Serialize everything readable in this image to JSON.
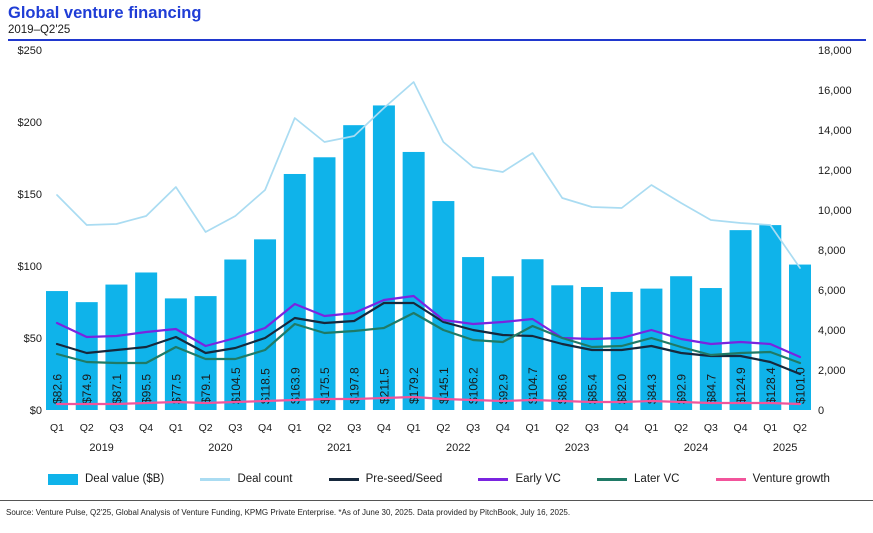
{
  "header": {
    "title": "Global venture financing",
    "subtitle": "2019–Q2'25"
  },
  "source_note": "Source: Venture Pulse, Q2'25, Global Analysis of Venture Funding, KPMG Private Enterprise. *As of June 30, 2025. Data provided by PitchBook, July 16, 2025.",
  "colors": {
    "title_blue": "#1f3dd6",
    "rule_blue": "#2038ce",
    "bar_cyan": "#0fb3ea",
    "deal_count_light_blue": "#aadcf2",
    "preseed_navy": "#16283c",
    "early_vc_purple": "#7a24e0",
    "later_vc_teal": "#1f7a66",
    "venture_growth_pink": "#f2549b",
    "axis_text": "#1a1a1a"
  },
  "legend": {
    "items": [
      {
        "label": "Deal value ($B)",
        "swatch": "bar",
        "color": "#0fb3ea"
      },
      {
        "label": "Deal count",
        "swatch": "line",
        "color": "#aadcf2"
      },
      {
        "label": "Pre-seed/Seed",
        "swatch": "line",
        "color": "#16283c"
      },
      {
        "label": "Early VC",
        "swatch": "line",
        "color": "#7a24e0"
      },
      {
        "label": "Later VC",
        "swatch": "line",
        "color": "#1f7a66"
      },
      {
        "label": "Venture growth",
        "swatch": "line",
        "color": "#f2549b"
      }
    ]
  },
  "chart_data": {
    "type": "combo_bar_line",
    "title": "Global venture financing",
    "subtitle": "2019–Q2'25",
    "grid": false,
    "legend_position": "bottom",
    "categories": [
      "Q1'19",
      "Q2'19",
      "Q3'19",
      "Q4'19",
      "Q1'20",
      "Q2'20",
      "Q3'20",
      "Q4'20",
      "Q1'21",
      "Q2'21",
      "Q3'21",
      "Q4'21",
      "Q1'22",
      "Q2'22",
      "Q3'22",
      "Q4'22",
      "Q1'23",
      "Q2'23",
      "Q3'23",
      "Q4'23",
      "Q1'24",
      "Q2'24",
      "Q3'24",
      "Q4'24",
      "Q1'25",
      "Q2'25"
    ],
    "x_axis": {
      "quarter_labels": [
        "Q1",
        "Q2",
        "Q3",
        "Q4",
        "Q1",
        "Q2",
        "Q3",
        "Q4",
        "Q1",
        "Q2",
        "Q3",
        "Q4",
        "Q1",
        "Q2",
        "Q3",
        "Q4",
        "Q1",
        "Q2",
        "Q3",
        "Q4",
        "Q1",
        "Q2",
        "Q3",
        "Q4",
        "Q1",
        "Q2"
      ],
      "year_labels": [
        "2019",
        "2020",
        "2021",
        "2022",
        "2023",
        "2024",
        "2025"
      ]
    },
    "left_axis": {
      "min": 0,
      "max": 250,
      "step": 50,
      "tick_labels": [
        "$0",
        "$50",
        "$100",
        "$150",
        "$200",
        "$250"
      ]
    },
    "right_axis": {
      "min": 0,
      "max": 18000,
      "step": 2000,
      "tick_labels": [
        "0",
        "2,000",
        "4,000",
        "6,000",
        "8,000",
        "10,000",
        "12,000",
        "14,000",
        "16,000",
        "18,000"
      ]
    },
    "bar_series": {
      "name": "Deal value ($B)",
      "axis": "left",
      "color": "#0fb3ea",
      "values": [
        82.6,
        74.9,
        87.1,
        95.5,
        77.5,
        79.1,
        104.5,
        118.5,
        163.9,
        175.5,
        197.8,
        211.5,
        179.2,
        145.1,
        106.2,
        92.9,
        104.7,
        86.6,
        85.4,
        82.0,
        84.3,
        92.9,
        84.7,
        124.9,
        128.4,
        101.0
      ],
      "value_labels": [
        "$82.6",
        "$74.9",
        "$87.1",
        "$95.5",
        "$77.5",
        "$79.1",
        "$104.5",
        "$118.5",
        "$163.9",
        "$175.5",
        "$197.8",
        "$211.5",
        "$179.2",
        "$145.1",
        "$106.2",
        "$92.9",
        "$104.7",
        "$86.6",
        "$85.4",
        "$82.0",
        "$84.3",
        "$92.9",
        "$84.7",
        "$124.9",
        "$128.4",
        "$101.0"
      ]
    },
    "line_series": [
      {
        "name": "Deal count",
        "axis": "right",
        "color": "#aadcf2",
        "width": 1.7,
        "values": [
          10750,
          9250,
          9300,
          9700,
          11150,
          8900,
          9700,
          11000,
          14600,
          13400,
          13700,
          15100,
          16400,
          13400,
          12150,
          11900,
          12850,
          10600,
          10150,
          10100,
          11250,
          10350,
          9500,
          9350,
          9250,
          7100
        ]
      },
      {
        "name": "Pre-seed/Seed",
        "axis": "right",
        "color": "#16283c",
        "width": 2.2,
        "values": [
          3300,
          2850,
          3000,
          3150,
          3650,
          2850,
          3100,
          3600,
          4600,
          4350,
          4450,
          5350,
          5350,
          4400,
          4000,
          3750,
          3700,
          3300,
          3000,
          3000,
          3200,
          2850,
          2700,
          2700,
          2400,
          1800
        ]
      },
      {
        "name": "Early VC",
        "axis": "right",
        "color": "#7a24e0",
        "width": 2.2,
        "values": [
          4350,
          3650,
          3700,
          3900,
          4050,
          3200,
          3600,
          4100,
          5300,
          4700,
          4850,
          5500,
          5700,
          4500,
          4300,
          4400,
          4550,
          3600,
          3550,
          3600,
          4000,
          3550,
          3300,
          3400,
          3300,
          2650
        ]
      },
      {
        "name": "Later VC",
        "axis": "right",
        "color": "#1f7a66",
        "width": 2.2,
        "values": [
          2800,
          2400,
          2350,
          2350,
          3150,
          2550,
          2550,
          3000,
          4300,
          3850,
          3950,
          4100,
          4850,
          4000,
          3500,
          3400,
          4200,
          3600,
          3150,
          3200,
          3600,
          3150,
          2750,
          2850,
          2900,
          2350
        ]
      },
      {
        "name": "Venture growth",
        "axis": "right",
        "color": "#f2549b",
        "width": 2.2,
        "values": [
          300,
          300,
          300,
          350,
          400,
          350,
          400,
          450,
          500,
          550,
          550,
          600,
          650,
          550,
          500,
          450,
          500,
          450,
          400,
          400,
          450,
          400,
          350,
          350,
          350,
          300
        ]
      }
    ]
  }
}
